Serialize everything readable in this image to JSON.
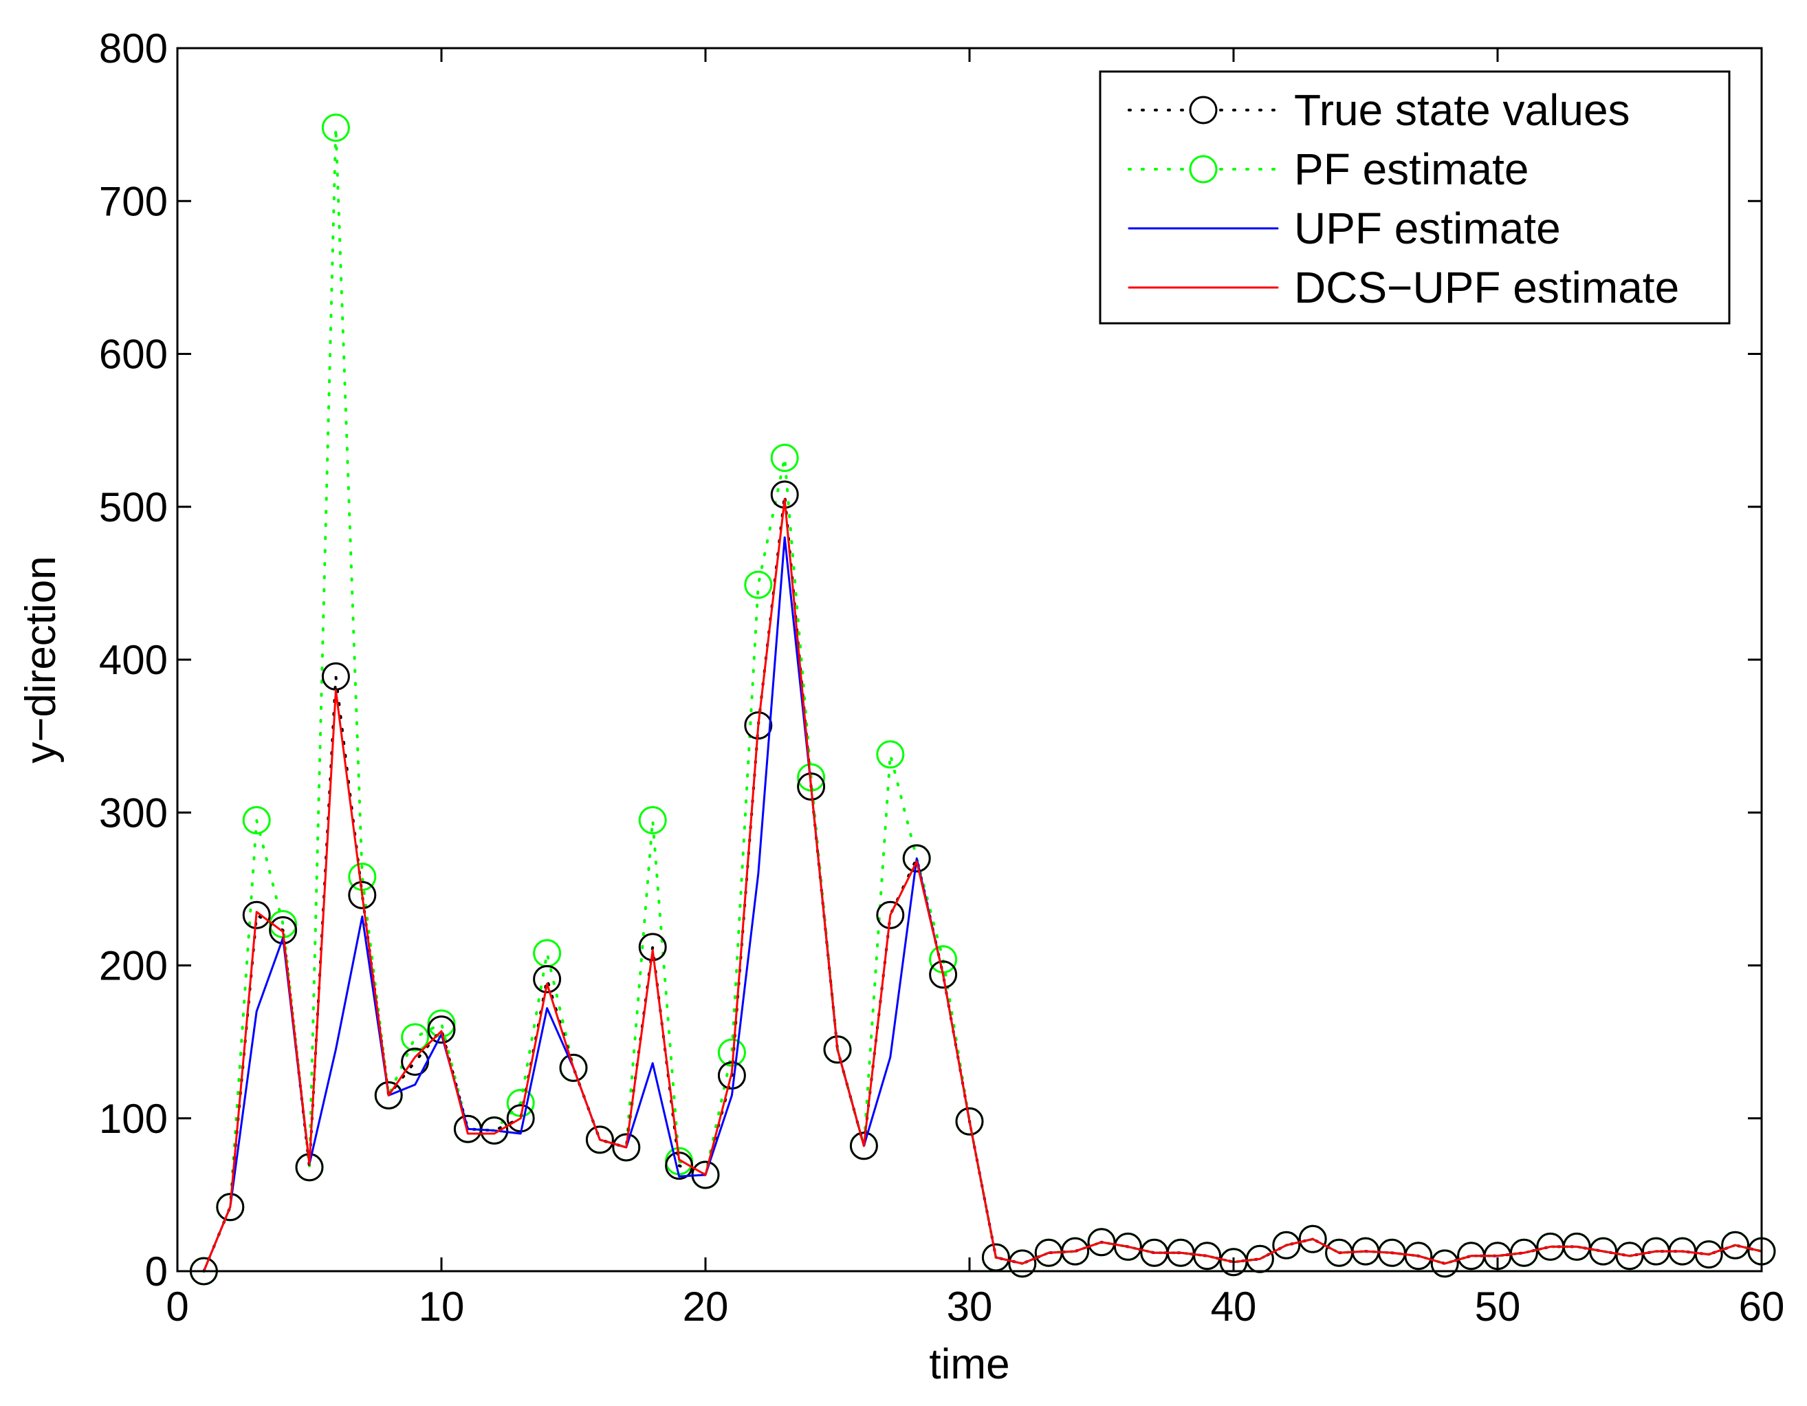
{
  "chart_data": {
    "type": "line",
    "title": "",
    "xlabel": "time",
    "ylabel": "y−direction",
    "xlim": [
      0,
      60
    ],
    "ylim": [
      0,
      800
    ],
    "xticks": [
      0,
      10,
      20,
      30,
      40,
      50,
      60
    ],
    "yticks": [
      0,
      100,
      200,
      300,
      400,
      500,
      600,
      700,
      800
    ],
    "grid": false,
    "legend_position": "top-right",
    "series": [
      {
        "name": "True state values",
        "color": "#000000",
        "line": "dotted",
        "marker": "circle",
        "points": [
          [
            1,
            0
          ],
          [
            2,
            42
          ],
          [
            3,
            233
          ],
          [
            4,
            223
          ],
          [
            5,
            68
          ],
          [
            6,
            389
          ],
          [
            7,
            246
          ],
          [
            8,
            115
          ],
          [
            9,
            137
          ],
          [
            10,
            158
          ],
          [
            11,
            93
          ],
          [
            12,
            92
          ],
          [
            13,
            100
          ],
          [
            14,
            191
          ],
          [
            15,
            133
          ],
          [
            16,
            86
          ],
          [
            17,
            81
          ],
          [
            18,
            212
          ],
          [
            19,
            69
          ],
          [
            20,
            63
          ],
          [
            21,
            128
          ],
          [
            22,
            357
          ],
          [
            23,
            508
          ],
          [
            24,
            317
          ],
          [
            25,
            145
          ],
          [
            26,
            82
          ],
          [
            27,
            233
          ],
          [
            28,
            270
          ],
          [
            29,
            194
          ],
          [
            30,
            98
          ],
          [
            31,
            9
          ],
          [
            32,
            5
          ],
          [
            33,
            12
          ],
          [
            34,
            13
          ],
          [
            35,
            19
          ],
          [
            36,
            16
          ],
          [
            37,
            12
          ],
          [
            38,
            12
          ],
          [
            39,
            10
          ],
          [
            40,
            6
          ],
          [
            41,
            8
          ],
          [
            42,
            17
          ],
          [
            43,
            21
          ],
          [
            44,
            12
          ],
          [
            45,
            13
          ],
          [
            46,
            12
          ],
          [
            47,
            10
          ],
          [
            48,
            5
          ],
          [
            49,
            10
          ],
          [
            50,
            10
          ],
          [
            51,
            12
          ],
          [
            52,
            16
          ],
          [
            53,
            16
          ],
          [
            54,
            13
          ],
          [
            55,
            10
          ],
          [
            56,
            13
          ],
          [
            57,
            13
          ],
          [
            58,
            11
          ],
          [
            59,
            17
          ],
          [
            60,
            13
          ]
        ]
      },
      {
        "name": "PF estimate",
        "color": "#00ff00",
        "line": "dotted",
        "marker": "circle",
        "points": [
          [
            1,
            0
          ],
          [
            2,
            42
          ],
          [
            3,
            295
          ],
          [
            4,
            227
          ],
          [
            5,
            68
          ],
          [
            6,
            748
          ],
          [
            7,
            258
          ],
          [
            8,
            115
          ],
          [
            9,
            153
          ],
          [
            10,
            162
          ],
          [
            11,
            93
          ],
          [
            12,
            92
          ],
          [
            13,
            110
          ],
          [
            14,
            208
          ],
          [
            15,
            133
          ],
          [
            16,
            86
          ],
          [
            17,
            81
          ],
          [
            18,
            295
          ],
          [
            19,
            72
          ],
          [
            20,
            63
          ],
          [
            21,
            143
          ],
          [
            22,
            449
          ],
          [
            23,
            532
          ],
          [
            24,
            323
          ],
          [
            25,
            145
          ],
          [
            26,
            82
          ],
          [
            27,
            338
          ],
          [
            28,
            270
          ],
          [
            29,
            204
          ],
          [
            30,
            98
          ],
          [
            31,
            9
          ],
          [
            32,
            5
          ],
          [
            33,
            12
          ],
          [
            34,
            13
          ],
          [
            35,
            19
          ],
          [
            36,
            16
          ],
          [
            37,
            12
          ],
          [
            38,
            12
          ],
          [
            39,
            10
          ],
          [
            40,
            6
          ],
          [
            41,
            8
          ],
          [
            42,
            17
          ],
          [
            43,
            21
          ],
          [
            44,
            12
          ],
          [
            45,
            13
          ],
          [
            46,
            12
          ],
          [
            47,
            10
          ],
          [
            48,
            5
          ],
          [
            49,
            10
          ],
          [
            50,
            10
          ],
          [
            51,
            12
          ],
          [
            52,
            16
          ],
          [
            53,
            16
          ],
          [
            54,
            13
          ],
          [
            55,
            10
          ],
          [
            56,
            13
          ],
          [
            57,
            13
          ],
          [
            58,
            11
          ],
          [
            59,
            17
          ],
          [
            60,
            13
          ]
        ]
      },
      {
        "name": "UPF estimate",
        "color": "#0000ff",
        "line": "solid",
        "marker": "none",
        "points": [
          [
            1,
            0
          ],
          [
            2,
            42
          ],
          [
            3,
            170
          ],
          [
            4,
            218
          ],
          [
            5,
            70
          ],
          [
            6,
            145
          ],
          [
            7,
            232
          ],
          [
            8,
            115
          ],
          [
            9,
            122
          ],
          [
            10,
            155
          ],
          [
            11,
            93
          ],
          [
            12,
            92
          ],
          [
            13,
            90
          ],
          [
            14,
            172
          ],
          [
            15,
            133
          ],
          [
            16,
            86
          ],
          [
            17,
            81
          ],
          [
            18,
            136
          ],
          [
            19,
            62
          ],
          [
            20,
            63
          ],
          [
            21,
            115
          ],
          [
            22,
            260
          ],
          [
            23,
            480
          ],
          [
            24,
            317
          ],
          [
            25,
            145
          ],
          [
            26,
            82
          ],
          [
            27,
            140
          ],
          [
            28,
            270
          ],
          [
            29,
            194
          ],
          [
            30,
            98
          ],
          [
            31,
            9
          ],
          [
            32,
            5
          ],
          [
            33,
            12
          ],
          [
            34,
            13
          ],
          [
            35,
            19
          ],
          [
            36,
            16
          ],
          [
            37,
            12
          ],
          [
            38,
            12
          ],
          [
            39,
            10
          ],
          [
            40,
            6
          ],
          [
            41,
            8
          ],
          [
            42,
            17
          ],
          [
            43,
            21
          ],
          [
            44,
            12
          ],
          [
            45,
            13
          ],
          [
            46,
            12
          ],
          [
            47,
            10
          ],
          [
            48,
            5
          ],
          [
            49,
            10
          ],
          [
            50,
            10
          ],
          [
            51,
            12
          ],
          [
            52,
            16
          ],
          [
            53,
            16
          ],
          [
            54,
            13
          ],
          [
            55,
            10
          ],
          [
            56,
            13
          ],
          [
            57,
            13
          ],
          [
            58,
            11
          ],
          [
            59,
            17
          ],
          [
            60,
            13
          ]
        ]
      },
      {
        "name": "DCS−UPF estimate",
        "color": "#ff0000",
        "line": "solid",
        "marker": "none",
        "points": [
          [
            1,
            0
          ],
          [
            2,
            42
          ],
          [
            3,
            235
          ],
          [
            4,
            222
          ],
          [
            5,
            70
          ],
          [
            6,
            380
          ],
          [
            7,
            246
          ],
          [
            8,
            115
          ],
          [
            9,
            140
          ],
          [
            10,
            157
          ],
          [
            11,
            90
          ],
          [
            12,
            90
          ],
          [
            13,
            100
          ],
          [
            14,
            188
          ],
          [
            15,
            133
          ],
          [
            16,
            86
          ],
          [
            17,
            81
          ],
          [
            18,
            210
          ],
          [
            19,
            73
          ],
          [
            20,
            63
          ],
          [
            21,
            130
          ],
          [
            22,
            357
          ],
          [
            23,
            505
          ],
          [
            24,
            317
          ],
          [
            25,
            145
          ],
          [
            26,
            82
          ],
          [
            27,
            233
          ],
          [
            28,
            268
          ],
          [
            29,
            194
          ],
          [
            30,
            98
          ],
          [
            31,
            9
          ],
          [
            32,
            5
          ],
          [
            33,
            12
          ],
          [
            34,
            13
          ],
          [
            35,
            19
          ],
          [
            36,
            16
          ],
          [
            37,
            12
          ],
          [
            38,
            12
          ],
          [
            39,
            10
          ],
          [
            40,
            6
          ],
          [
            41,
            8
          ],
          [
            42,
            17
          ],
          [
            43,
            21
          ],
          [
            44,
            12
          ],
          [
            45,
            13
          ],
          [
            46,
            12
          ],
          [
            47,
            10
          ],
          [
            48,
            5
          ],
          [
            49,
            10
          ],
          [
            50,
            10
          ],
          [
            51,
            12
          ],
          [
            52,
            16
          ],
          [
            53,
            16
          ],
          [
            54,
            13
          ],
          [
            55,
            10
          ],
          [
            56,
            13
          ],
          [
            57,
            13
          ],
          [
            58,
            11
          ],
          [
            59,
            17
          ],
          [
            60,
            13
          ]
        ]
      }
    ]
  }
}
